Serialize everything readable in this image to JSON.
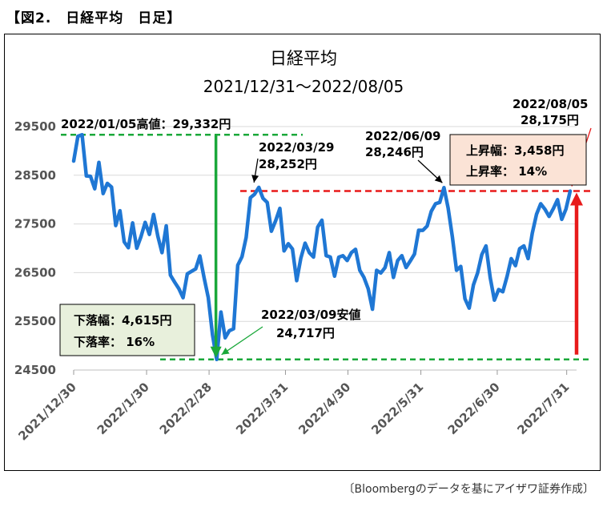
{
  "figure_label": "【図2.　日経平均　日足】",
  "source_note": "〔Bloombergのデータを基にアイザワ証券作成〕",
  "colors": {
    "line": "#1f77d4",
    "guide_green": "#1aa83a",
    "guide_red": "#e81a1a",
    "rise_box_fill": "#fbe3d6",
    "fall_box_fill": "#e8f0dc",
    "grid": "#d9d9d9"
  },
  "chart_data": {
    "type": "line",
    "title": "日経平均",
    "subtitle": "2021/12/31～2022/08/05",
    "xlabel": "",
    "ylabel": "",
    "ylim": [
      24500,
      29500
    ],
    "yticks": [
      "29500",
      "28500",
      "27500",
      "26500",
      "25500",
      "24500"
    ],
    "grid": true,
    "legend": "none",
    "xticks": [
      "2021/12/30",
      "2022/1/30",
      "2022/2/28",
      "2022/3/31",
      "2022/4/30",
      "2022/5/31",
      "2022/6/30",
      "2022/7/31"
    ],
    "series": [
      {
        "values": [
          28791,
          29301,
          29332,
          28487,
          28479,
          28222,
          28765,
          28124,
          28333,
          28257,
          27467,
          27772,
          27131,
          27011,
          27522,
          27002,
          27241,
          27533,
          27285,
          27696,
          27248,
          26910,
          27460,
          26449,
          26304,
          26170,
          25985,
          26476,
          26527,
          26577,
          26844,
          26393,
          25985,
          25221,
          24717,
          25690,
          25162,
          25307,
          25347,
          26653,
          26827,
          27224,
          28040,
          28110,
          28252,
          28027,
          27943,
          27350,
          27566,
          27821,
          26945,
          27093,
          26985,
          26335,
          26800,
          27105,
          26911,
          26819,
          27434,
          27577,
          26848,
          26820,
          26427,
          26818,
          26847,
          26748,
          26911,
          26979,
          26547,
          26402,
          26170,
          25748,
          26547,
          26493,
          26604,
          26911,
          26402,
          26748,
          26848,
          26605,
          26739,
          26882,
          27370,
          27369,
          27458,
          27761,
          27915,
          27943,
          28246,
          27827,
          27235,
          26547,
          26629,
          25963,
          25771,
          26246,
          26491,
          26871,
          27049,
          26393,
          25935,
          26153,
          26107,
          26423,
          26788,
          26643,
          26992,
          27049,
          26788,
          27311,
          27699,
          27914,
          27803,
          27655,
          27815,
          27999,
          27594,
          27802,
          28175
        ]
      }
    ],
    "annotations": {
      "high_label": "2022/01/05高値：29,332円",
      "low_label_1": "2022/03/09安値",
      "low_label_2": "24,717円",
      "mar29_label_1": "2022/03/29",
      "mar29_label_2": "28,252円",
      "jun09_label_1": "2022/06/09",
      "jun09_label_2": "28,246円",
      "aug05_label_1": "2022/08/05",
      "aug05_label_2": "28,175円",
      "rise_box_1": "上昇幅：3,458円",
      "rise_box_2": "上昇率：  14%",
      "fall_box_1": "下落幅：4,615円",
      "fall_box_2": "下落率：   16%"
    }
  }
}
